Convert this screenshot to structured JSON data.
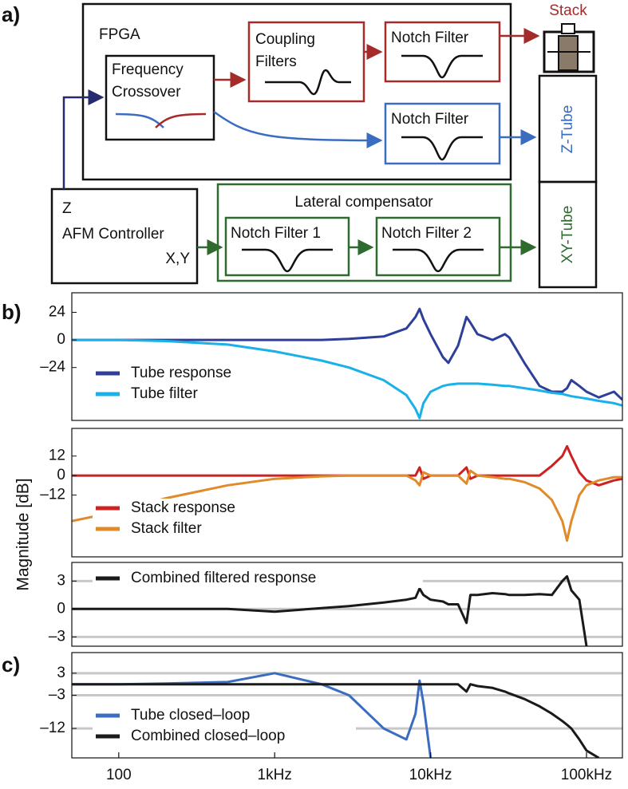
{
  "panel_labels": [
    "a)",
    "b)",
    "c)"
  ],
  "ylabel": "Magnitude [dB]",
  "diagram": {
    "fpga": "FPGA",
    "crossover": [
      "Frequency",
      "Crossover"
    ],
    "coupling": [
      "Coupling",
      "Filters"
    ],
    "notch_red": "Notch Filter",
    "notch_blue": "Notch Filter",
    "stack": "Stack",
    "z_tube": "Z-Tube",
    "xy_tube": "XY-Tube",
    "controller": [
      "Z",
      "AFM Controller",
      "X,Y"
    ],
    "lateral": "Lateral compensator",
    "notch1": "Notch Filter 1",
    "notch2": "Notch Filter 2"
  },
  "chart_data": [
    {
      "type": "line",
      "log_x": true,
      "legend": "lower left",
      "x": [
        50,
        100,
        200,
        500,
        1000,
        2000,
        3000,
        5000,
        7000,
        8000,
        8500,
        9000,
        10000,
        12000,
        13000,
        15000,
        17000,
        18000,
        20000,
        25000,
        30000,
        32000,
        40000,
        50000,
        60000,
        70000,
        75000,
        80000,
        90000,
        100000,
        120000,
        150000,
        170000
      ],
      "xlim": [
        50,
        170000
      ],
      "ylim": [
        -70,
        41
      ],
      "yticks": [
        24,
        0,
        {
          "value": -24,
          "label": "–24"
        }
      ],
      "grid": false,
      "series": [
        {
          "name": "Tube response",
          "color": "#2e3f99",
          "values": [
            0,
            0,
            0,
            0,
            0,
            0,
            1,
            3,
            10,
            20,
            27,
            18,
            5,
            -15,
            -20,
            -5,
            20,
            15,
            5,
            0,
            5,
            2,
            -20,
            -40,
            -45,
            -45,
            -42,
            -35,
            -40,
            -45,
            -50,
            -45,
            -52
          ]
        },
        {
          "name": "Tube filter",
          "color": "#1ab0e8",
          "values": [
            0,
            0,
            -1,
            -4,
            -10,
            -18,
            -24,
            -35,
            -48,
            -60,
            -68,
            -55,
            -45,
            -40,
            -39,
            -38,
            -38,
            -38,
            -38,
            -39,
            -40,
            -40,
            -42,
            -44,
            -46,
            -47,
            -48,
            -49,
            -50,
            -51,
            -53,
            -55,
            -57
          ]
        }
      ]
    },
    {
      "type": "line",
      "log_x": true,
      "legend": "lower left",
      "x": [
        50,
        100,
        200,
        500,
        1000,
        2000,
        3000,
        5000,
        7000,
        8000,
        8500,
        9000,
        10000,
        12000,
        13000,
        15000,
        17000,
        18000,
        20000,
        25000,
        30000,
        32000,
        40000,
        50000,
        60000,
        70000,
        75000,
        80000,
        90000,
        100000,
        120000,
        150000,
        170000
      ],
      "xlim": [
        50,
        170000
      ],
      "ylim": [
        -50,
        29
      ],
      "yticks": [
        12,
        0,
        {
          "value": -12,
          "label": "–12"
        }
      ],
      "grid": false,
      "series": [
        {
          "name": "Stack response",
          "color": "#cc2222",
          "values": [
            0,
            0,
            0,
            0,
            0,
            0,
            0,
            0,
            0,
            0,
            5,
            -2,
            0,
            0,
            0,
            0,
            5,
            -2,
            0,
            0,
            0,
            0,
            0,
            0,
            6,
            12,
            18,
            12,
            2,
            -3,
            -6,
            -3,
            -2
          ]
        },
        {
          "name": "Stack filter",
          "color": "#e08a2a",
          "values": [
            -28,
            -22,
            -14,
            -6,
            -2,
            -0.5,
            0,
            0,
            0,
            -3,
            -6,
            2,
            0,
            0,
            0,
            0,
            -5,
            3,
            0,
            -1,
            -2,
            -2,
            -4,
            -8,
            -15,
            -28,
            -40,
            -28,
            -12,
            -6,
            -3,
            -1,
            -1
          ]
        }
      ]
    },
    {
      "type": "line",
      "log_x": true,
      "legend": "upper left",
      "x": [
        50,
        100,
        200,
        500,
        1000,
        2000,
        3000,
        5000,
        7000,
        8000,
        8500,
        9000,
        10000,
        12000,
        13000,
        15000,
        17000,
        18000,
        20000,
        25000,
        30000,
        32000,
        40000,
        50000,
        60000,
        70000,
        75000,
        80000,
        90000,
        100000,
        120000,
        150000,
        170000
      ],
      "xlim": [
        50,
        170000
      ],
      "ylim": [
        -4,
        5
      ],
      "yticks": [
        3,
        0,
        {
          "value": -3,
          "label": "–3"
        }
      ],
      "grid": true,
      "series": [
        {
          "name": "Combined filtered response",
          "color": "#1a1a1a",
          "values": [
            0,
            0,
            0,
            0,
            -0.3,
            0.1,
            0.3,
            0.7,
            1,
            1.2,
            2.2,
            1.5,
            1,
            0.8,
            0.5,
            0.5,
            -1.5,
            1.5,
            1.5,
            1.7,
            1.6,
            1.5,
            1.5,
            1.6,
            1.5,
            3,
            3.5,
            2,
            1,
            -4,
            null,
            null,
            null
          ]
        }
      ]
    },
    {
      "type": "line",
      "log_x": true,
      "legend": "lower left",
      "x": [
        50,
        100,
        200,
        500,
        1000,
        2000,
        3000,
        5000,
        7000,
        8000,
        8500,
        9000,
        10000,
        12000,
        13000,
        15000,
        17000,
        18000,
        20000,
        25000,
        30000,
        32000,
        40000,
        50000,
        60000,
        70000,
        75000,
        80000,
        90000,
        100000,
        120000,
        150000,
        170000
      ],
      "xlim": [
        50,
        170000
      ],
      "ylim": [
        -20,
        8.6
      ],
      "xticks": [
        100,
        {
          "value": 1000,
          "label": "1kHz"
        },
        {
          "value": 10000,
          "label": "10kHz"
        },
        {
          "value": 100000,
          "label": "100kHz"
        }
      ],
      "yticks": [
        3,
        {
          "value": -3,
          "label": "–3"
        },
        {
          "value": -12,
          "label": "–12"
        }
      ],
      "grid": true,
      "series": [
        {
          "name": "Tube closed–loop",
          "color": "#3a6cc0",
          "values": [
            0,
            0,
            0.2,
            0.6,
            3,
            0,
            -3,
            -12,
            -15,
            -8,
            1,
            -5,
            -20,
            null,
            null,
            null,
            null,
            null,
            null,
            null,
            null,
            null,
            null,
            null,
            null,
            null,
            null,
            null,
            null,
            null,
            null,
            null,
            null
          ]
        },
        {
          "name": "Combined closed–loop",
          "color": "#1a1a1a",
          "values": [
            0,
            0,
            0,
            0,
            0,
            0,
            0,
            0,
            0,
            0,
            0,
            0,
            0,
            0,
            0,
            0,
            -2,
            0,
            -0.5,
            -1,
            -2,
            -2.5,
            -4,
            -6,
            -8,
            -10,
            -11,
            -12,
            -15,
            -18,
            -20,
            null,
            null
          ]
        }
      ]
    }
  ]
}
